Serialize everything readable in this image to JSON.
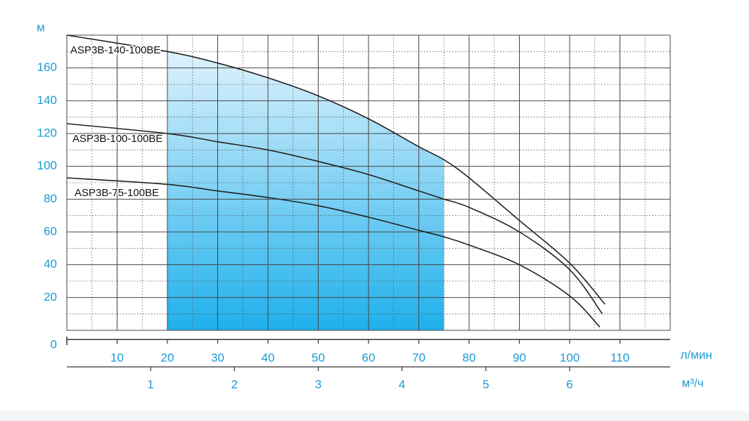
{
  "chart_data": {
    "type": "line",
    "y_label": "м",
    "x_label": "л/мин",
    "x2_label": "м³/ч",
    "xlim": [
      0,
      120
    ],
    "xticks": [
      10,
      20,
      30,
      40,
      50,
      60,
      70,
      80,
      90,
      100,
      110
    ],
    "x2lim": [
      0,
      7.2
    ],
    "x2ticks": [
      1,
      2,
      3,
      4,
      5,
      6
    ],
    "ylim": [
      0,
      180
    ],
    "yticks": [
      0,
      20,
      40,
      60,
      80,
      100,
      120,
      140,
      160
    ],
    "grid": true,
    "minor_grid": true,
    "tick_color": "#1a9ad6",
    "highlight": {
      "xlim": [
        20,
        75
      ],
      "colors": [
        "#eaf6fd",
        "#1fb0ec"
      ]
    },
    "series": [
      {
        "name": "ASP3B-140-100BE",
        "color": "#222222",
        "x": [
          0,
          20,
          30,
          40,
          50,
          60,
          70,
          75,
          80,
          90,
          100,
          107
        ],
        "values": [
          180,
          170,
          163,
          154,
          143,
          129,
          112,
          104,
          93,
          67,
          41,
          16
        ]
      },
      {
        "name": "ASP3B-100-100BE",
        "color": "#222222",
        "x": [
          0,
          20,
          30,
          40,
          50,
          60,
          70,
          75,
          80,
          90,
          100,
          106.5
        ],
        "values": [
          126,
          120,
          115,
          110,
          103,
          95,
          85,
          80,
          75,
          60,
          37,
          10
        ]
      },
      {
        "name": "ASP3B-75-100BE",
        "color": "#222222",
        "x": [
          0,
          20,
          30,
          40,
          50,
          60,
          70,
          75,
          80,
          90,
          100,
          106
        ],
        "values": [
          93,
          89,
          85,
          81,
          76,
          69,
          61,
          57,
          52,
          40,
          21,
          2
        ]
      }
    ]
  }
}
